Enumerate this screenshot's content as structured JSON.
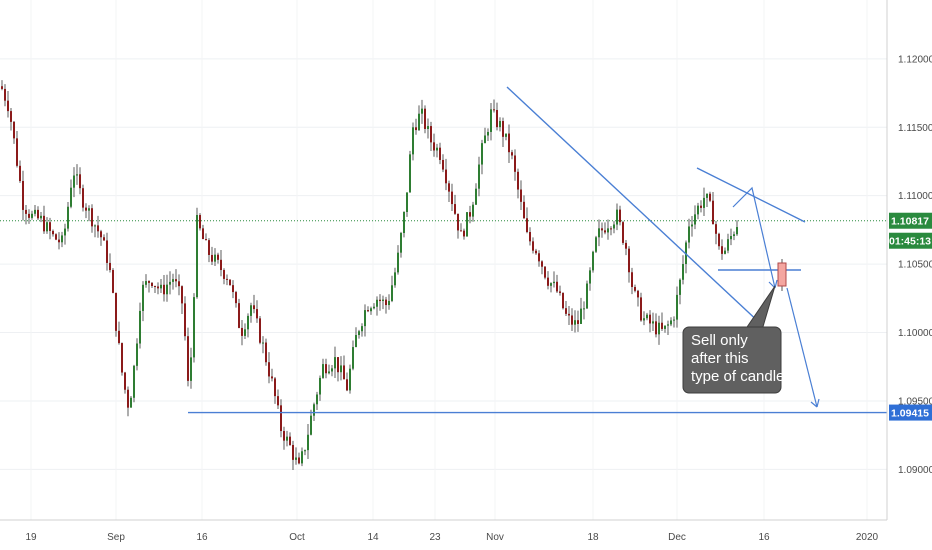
{
  "chart_data": {
    "type": "candlestick",
    "ylim": [
      1.0863,
      1.1243
    ],
    "price_ticks": [
      "1.12000",
      "1.11500",
      "1.11000",
      "1.10500",
      "1.10000",
      "1.09500",
      "1.09000"
    ],
    "time_ticks": [
      "19",
      "Sep",
      "16",
      "Oct",
      "14",
      "23",
      "Nov",
      "18",
      "Dec",
      "16",
      "2020"
    ],
    "current_price": "1.10817",
    "countdown": "01:45:13",
    "support_price": "1.09415",
    "annotation": "Sell only after this type of candle",
    "colors": {
      "up": "#2e7d32",
      "down": "#8b1a1a",
      "trendline": "#4a7fd4",
      "current_badge": "#2a8a3e",
      "support_badge": "#2f6fd6",
      "note_bg": "#606060",
      "signal_candle": "#f4a6a0"
    }
  }
}
